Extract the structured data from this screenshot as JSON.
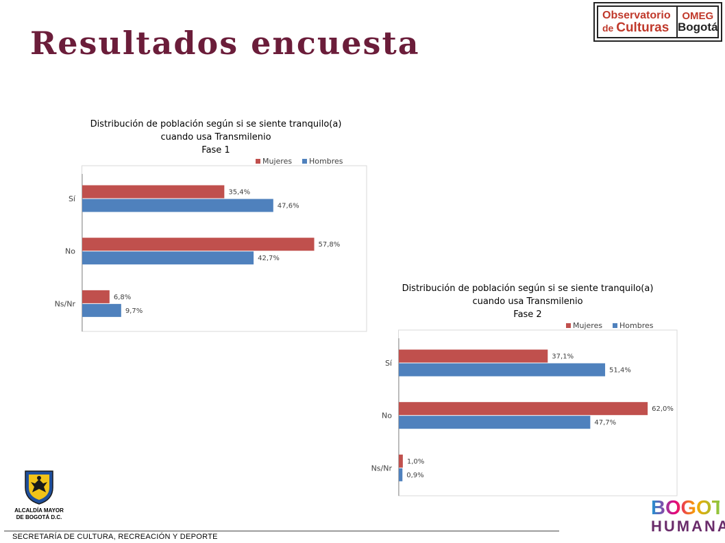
{
  "page": {
    "title": "Resultados encuesta",
    "footer": "SECRETARÍA DE CULTURA, RECREACIÓN Y DEPORTE",
    "colors": {
      "title": "#6b1d3a",
      "mujeres": "#c0504d",
      "hombres": "#4f81bd"
    }
  },
  "logos": {
    "observatorio_line1": "Observatorio",
    "observatorio_line2_de": "de",
    "observatorio_line2_culturas": "Culturas",
    "omeg": "OMEG",
    "bogota": "Bogotá",
    "alcaldia_line1": "ALCALDÍA MAYOR",
    "alcaldia_line2": "DE BOGOTÁ D.C.",
    "bogota_humana_line1": "BOGOTÁ",
    "bogota_humana_line2": "HUMANA"
  },
  "chart_data": [
    {
      "type": "bar",
      "orientation": "horizontal",
      "title_lines": [
        "Distribución de población según si se siente tranquilo(a)",
        "cuando usa Transmilenio",
        "Fase 1"
      ],
      "categories": [
        "Sí",
        "No",
        "Ns/Nr"
      ],
      "series": [
        {
          "name": "Mujeres",
          "color": "#c0504d",
          "values": [
            35.4,
            57.8,
            6.8
          ],
          "labels": [
            "35,4%",
            "57,8%",
            "6,8%"
          ]
        },
        {
          "name": "Hombres",
          "color": "#4f81bd",
          "values": [
            47.6,
            42.7,
            9.7
          ],
          "labels": [
            "47,6%",
            "42,7%",
            "9,7%"
          ]
        }
      ],
      "xlim": [
        0,
        70
      ],
      "grid": false,
      "legend": "top-right"
    },
    {
      "type": "bar",
      "orientation": "horizontal",
      "title_lines": [
        "Distribución de población según si se siente tranquilo(a)",
        "cuando usa Transmilenio",
        "Fase 2"
      ],
      "categories": [
        "Sí",
        "No",
        "Ns/Nr"
      ],
      "series": [
        {
          "name": "Mujeres",
          "color": "#c0504d",
          "values": [
            37.1,
            62.0,
            1.0
          ],
          "labels": [
            "37,1%",
            "62,0%",
            "1,0%"
          ]
        },
        {
          "name": "Hombres",
          "color": "#4f81bd",
          "values": [
            51.4,
            47.7,
            0.9
          ],
          "labels": [
            "51,4%",
            "47,7%",
            "0,9%"
          ]
        }
      ],
      "xlim": [
        0,
        70
      ],
      "grid": false,
      "legend": "top-right"
    }
  ]
}
